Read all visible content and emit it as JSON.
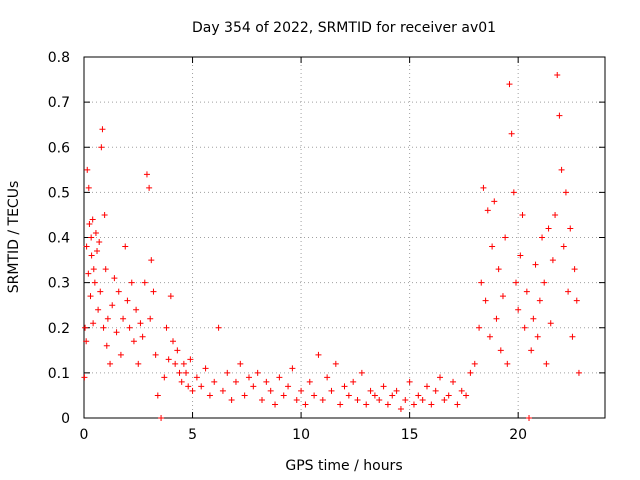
{
  "chart_data": {
    "type": "scatter",
    "title": "Day 354 of 2022, SRMTID for receiver av01",
    "xlabel": "GPS time / hours",
    "ylabel": "SRMTID / TECUs",
    "xlim": [
      0,
      24
    ],
    "ylim": [
      0,
      0.8
    ],
    "xticks": [
      0,
      5,
      10,
      15,
      20
    ],
    "xtick_labels": [
      "0",
      "5",
      "10",
      "15",
      "20"
    ],
    "yticks": [
      0,
      0.1,
      0.2,
      0.3,
      0.4,
      0.5,
      0.6,
      0.7,
      0.8
    ],
    "ytick_labels": [
      "0",
      "0.1",
      "0.2",
      "0.3",
      "0.4",
      "0.5",
      "0.6",
      "0.7",
      "0.8"
    ],
    "grid": true,
    "marker": "+",
    "color": "#ff0000",
    "series": [
      {
        "name": "SRMTID",
        "x": [
          0.02,
          0.05,
          0.1,
          0.12,
          0.15,
          0.2,
          0.22,
          0.25,
          0.3,
          0.33,
          0.35,
          0.4,
          0.42,
          0.45,
          0.5,
          0.55,
          0.6,
          0.65,
          0.7,
          0.75,
          0.8,
          0.85,
          0.9,
          0.95,
          1.0,
          1.05,
          1.1,
          1.2,
          1.3,
          1.4,
          1.5,
          1.6,
          1.7,
          1.8,
          1.9,
          2.0,
          2.1,
          2.2,
          2.3,
          2.4,
          2.5,
          2.6,
          2.7,
          2.8,
          2.9,
          3.0,
          3.05,
          3.1,
          3.2,
          3.3,
          3.4,
          3.55,
          3.7,
          3.8,
          3.9,
          4.0,
          4.1,
          4.2,
          4.3,
          4.4,
          4.5,
          4.6,
          4.7,
          4.8,
          4.9,
          5.0,
          5.2,
          5.4,
          5.6,
          5.8,
          6.0,
          6.2,
          6.4,
          6.6,
          6.8,
          7.0,
          7.2,
          7.4,
          7.6,
          7.8,
          8.0,
          8.2,
          8.4,
          8.6,
          8.8,
          9.0,
          9.2,
          9.4,
          9.6,
          9.8,
          10.0,
          10.2,
          10.4,
          10.6,
          10.8,
          11.0,
          11.2,
          11.4,
          11.6,
          11.8,
          12.0,
          12.2,
          12.4,
          12.6,
          12.8,
          13.0,
          13.2,
          13.4,
          13.6,
          13.8,
          14.0,
          14.2,
          14.4,
          14.6,
          14.8,
          15.0,
          15.2,
          15.4,
          15.6,
          15.8,
          16.0,
          16.2,
          16.4,
          16.6,
          16.8,
          17.0,
          17.2,
          17.4,
          17.6,
          17.8,
          18.0,
          18.2,
          18.3,
          18.4,
          18.5,
          18.6,
          18.7,
          18.8,
          18.9,
          19.0,
          19.1,
          19.2,
          19.3,
          19.4,
          19.5,
          19.6,
          19.7,
          19.8,
          19.9,
          20.0,
          20.1,
          20.2,
          20.3,
          20.4,
          20.5,
          20.6,
          20.7,
          20.8,
          20.9,
          21.0,
          21.1,
          21.2,
          21.3,
          21.4,
          21.5,
          21.6,
          21.7,
          21.8,
          21.9,
          22.0,
          22.1,
          22.2,
          22.3,
          22.4,
          22.5,
          22.6,
          22.7,
          22.8
        ],
        "y": [
          0.09,
          0.2,
          0.17,
          0.38,
          0.55,
          0.32,
          0.51,
          0.43,
          0.27,
          0.4,
          0.36,
          0.44,
          0.21,
          0.33,
          0.3,
          0.41,
          0.37,
          0.24,
          0.39,
          0.28,
          0.6,
          0.64,
          0.2,
          0.45,
          0.33,
          0.16,
          0.22,
          0.12,
          0.25,
          0.31,
          0.19,
          0.28,
          0.14,
          0.22,
          0.38,
          0.26,
          0.2,
          0.3,
          0.17,
          0.24,
          0.12,
          0.21,
          0.18,
          0.3,
          0.54,
          0.51,
          0.22,
          0.35,
          0.28,
          0.14,
          0.05,
          0.0,
          0.09,
          0.2,
          0.13,
          0.27,
          0.17,
          0.12,
          0.15,
          0.1,
          0.08,
          0.12,
          0.1,
          0.07,
          0.13,
          0.06,
          0.09,
          0.07,
          0.11,
          0.05,
          0.08,
          0.2,
          0.06,
          0.1,
          0.04,
          0.08,
          0.12,
          0.05,
          0.09,
          0.07,
          0.1,
          0.04,
          0.08,
          0.06,
          0.03,
          0.09,
          0.05,
          0.07,
          0.11,
          0.04,
          0.06,
          0.03,
          0.08,
          0.05,
          0.14,
          0.04,
          0.09,
          0.06,
          0.12,
          0.03,
          0.07,
          0.05,
          0.08,
          0.04,
          0.1,
          0.03,
          0.06,
          0.05,
          0.04,
          0.07,
          0.03,
          0.05,
          0.06,
          0.02,
          0.04,
          0.08,
          0.03,
          0.05,
          0.04,
          0.07,
          0.03,
          0.06,
          0.09,
          0.04,
          0.05,
          0.08,
          0.03,
          0.06,
          0.05,
          0.1,
          0.12,
          0.2,
          0.3,
          0.51,
          0.26,
          0.46,
          0.18,
          0.38,
          0.48,
          0.22,
          0.33,
          0.15,
          0.27,
          0.4,
          0.12,
          0.74,
          0.63,
          0.5,
          0.3,
          0.24,
          0.36,
          0.45,
          0.2,
          0.28,
          0.0,
          0.15,
          0.22,
          0.34,
          0.18,
          0.26,
          0.4,
          0.3,
          0.12,
          0.42,
          0.21,
          0.35,
          0.45,
          0.76,
          0.67,
          0.55,
          0.38,
          0.5,
          0.28,
          0.42,
          0.18,
          0.33,
          0.26,
          0.1
        ]
      }
    ]
  }
}
